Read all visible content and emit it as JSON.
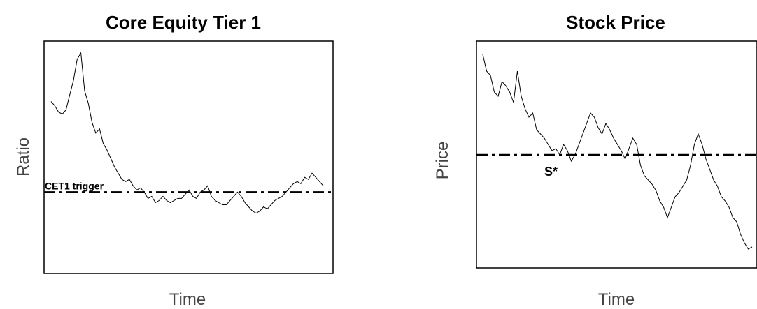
{
  "chart_data": [
    {
      "type": "line",
      "title": "Core Equity Tier 1",
      "xlabel": "Time",
      "ylabel": "Ratio",
      "threshold_label": "CET1 trigger",
      "threshold": 0.32,
      "ylim": [
        0,
        1
      ],
      "series": [
        {
          "values": [
            0.75,
            0.73,
            0.7,
            0.69,
            0.71,
            0.78,
            0.85,
            0.95,
            0.98,
            0.8,
            0.74,
            0.65,
            0.6,
            0.62,
            0.55,
            0.52,
            0.48,
            0.44,
            0.41,
            0.38,
            0.37,
            0.38,
            0.35,
            0.33,
            0.34,
            0.32,
            0.29,
            0.3,
            0.27,
            0.28,
            0.3,
            0.28,
            0.27,
            0.28,
            0.29,
            0.29,
            0.31,
            0.33,
            0.3,
            0.29,
            0.32,
            0.33,
            0.35,
            0.3,
            0.28,
            0.27,
            0.26,
            0.26,
            0.28,
            0.3,
            0.32,
            0.3,
            0.27,
            0.25,
            0.23,
            0.22,
            0.23,
            0.25,
            0.24,
            0.26,
            0.28,
            0.29,
            0.3,
            0.32,
            0.34,
            0.36,
            0.37,
            0.36,
            0.39,
            0.38,
            0.41,
            0.39,
            0.37,
            0.35
          ]
        }
      ]
    },
    {
      "type": "line",
      "title": "Stock Price",
      "xlabel": "Time",
      "ylabel": "Price",
      "threshold_label": "S*",
      "threshold": 0.5,
      "ylim": [
        0,
        1
      ],
      "series": [
        {
          "values": [
            0.98,
            0.9,
            0.88,
            0.8,
            0.78,
            0.85,
            0.83,
            0.8,
            0.75,
            0.9,
            0.78,
            0.72,
            0.68,
            0.7,
            0.62,
            0.6,
            0.58,
            0.55,
            0.52,
            0.53,
            0.5,
            0.55,
            0.52,
            0.47,
            0.5,
            0.55,
            0.6,
            0.65,
            0.7,
            0.68,
            0.63,
            0.6,
            0.65,
            0.62,
            0.58,
            0.55,
            0.52,
            0.48,
            0.53,
            0.58,
            0.55,
            0.45,
            0.4,
            0.38,
            0.36,
            0.33,
            0.28,
            0.25,
            0.2,
            0.25,
            0.3,
            0.32,
            0.35,
            0.38,
            0.45,
            0.55,
            0.6,
            0.55,
            0.48,
            0.43,
            0.38,
            0.35,
            0.3,
            0.28,
            0.25,
            0.2,
            0.18,
            0.12,
            0.08,
            0.05,
            0.06
          ]
        }
      ]
    }
  ]
}
